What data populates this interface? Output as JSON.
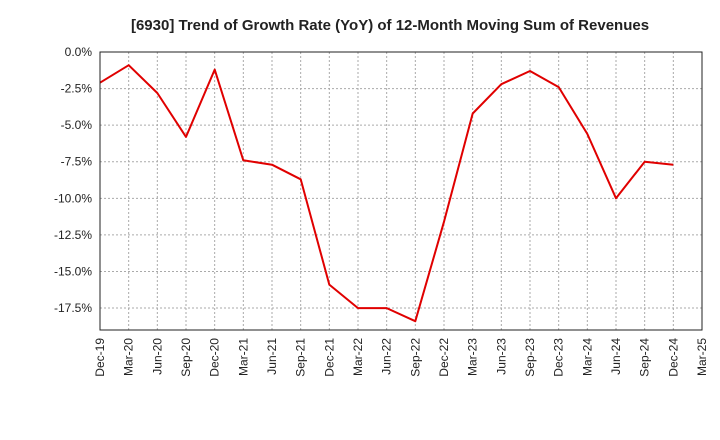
{
  "chart_data": {
    "type": "line",
    "title": "[6930]  Trend of Growth Rate (YoY) of 12-Month Moving Sum of Revenues",
    "xlabel": "",
    "ylabel": "",
    "categories": [
      "Dec-19",
      "Mar-20",
      "Jun-20",
      "Sep-20",
      "Dec-20",
      "Mar-21",
      "Jun-21",
      "Sep-21",
      "Dec-21",
      "Mar-22",
      "Jun-22",
      "Sep-22",
      "Dec-22",
      "Mar-23",
      "Jun-23",
      "Sep-23",
      "Dec-23",
      "Mar-24",
      "Jun-24",
      "Sep-24",
      "Dec-24",
      "Mar-25"
    ],
    "series": [
      {
        "color": "#e00000",
        "values": [
          -2.1,
          -0.9,
          -2.8,
          -5.8,
          -1.2,
          -7.4,
          -7.7,
          -8.7,
          -15.9,
          -17.5,
          -17.5,
          -18.4,
          -11.6,
          -4.2,
          -2.2,
          -1.3,
          -2.4,
          -5.6,
          -10.0,
          -7.5,
          -7.7,
          null
        ]
      }
    ],
    "ylim": [
      -19.0,
      0.0
    ],
    "yticks": [
      0.0,
      -2.5,
      -5.0,
      -7.5,
      -10.0,
      -12.5,
      -15.0,
      -17.5
    ],
    "ytick_labels": [
      "0.0%",
      "-2.5%",
      "-5.0%",
      "-7.5%",
      "-10.0%",
      "-12.5%",
      "-15.0%",
      "-17.5%"
    ],
    "grid": true,
    "grid_color": "#aaaaaa",
    "axis_color": "#222222"
  }
}
